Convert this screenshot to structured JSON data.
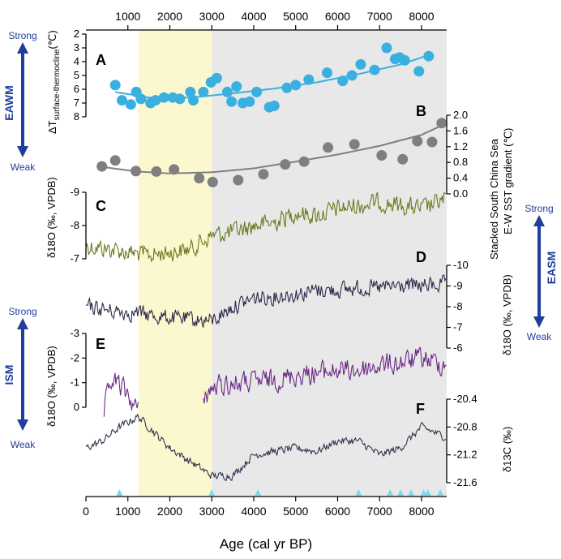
{
  "chart_data": {
    "type": "line",
    "x_axis": {
      "label": "Age (cal yr BP)",
      "range": [
        0,
        8600
      ],
      "bottom_ticks": [
        "0",
        "1000",
        "2000",
        "3000",
        "4000",
        "5000",
        "6000",
        "7000",
        "8000"
      ],
      "top_ticks": [
        "1000",
        "2000",
        "3000",
        "4000",
        "5000",
        "6000",
        "7000",
        "8000"
      ],
      "tick_values": [
        0,
        1000,
        2000,
        3000,
        4000,
        5000,
        6000,
        7000,
        8000
      ]
    },
    "shading": [
      {
        "name": "yellow-band",
        "from": 1250,
        "to": 3000,
        "color": "#fbf8d0"
      },
      {
        "name": "gray-band",
        "from": 3000,
        "to": 8600,
        "color": "#e8e8e8"
      }
    ],
    "monsoon_labels": {
      "eawm": {
        "title": "EAWM",
        "strong": "Strong",
        "weak": "Weak"
      },
      "easm": {
        "title": "EASM",
        "strong": "Strong",
        "weak": "Weak"
      },
      "ism": {
        "title": "ISM",
        "strong": "Strong",
        "weak": "Weak"
      },
      "color": "#1f3f9a"
    },
    "panels": [
      {
        "id": "A",
        "letter": "A",
        "type": "scatter+trend",
        "label_main": "ΔT",
        "label_sub": "surface-thermocline",
        "label_unit": "(℃)",
        "axis": "left",
        "reversed": true,
        "range": [
          2,
          8
        ],
        "ticks": [
          "2",
          "3",
          "4",
          "5",
          "6",
          "7",
          "8"
        ],
        "tick_values": [
          2,
          3,
          4,
          5,
          6,
          7,
          8
        ],
        "color": "#3ab0e0",
        "points": [
          [
            700,
            5.7
          ],
          [
            860,
            6.8
          ],
          [
            1070,
            7.1
          ],
          [
            1200,
            6.2
          ],
          [
            1310,
            6.7
          ],
          [
            1540,
            7.0
          ],
          [
            1660,
            6.8
          ],
          [
            1860,
            6.6
          ],
          [
            2070,
            6.6
          ],
          [
            2240,
            6.7
          ],
          [
            2490,
            6.2
          ],
          [
            2560,
            6.8
          ],
          [
            2800,
            6.2
          ],
          [
            2980,
            5.5
          ],
          [
            3120,
            5.2
          ],
          [
            3370,
            6.2
          ],
          [
            3470,
            6.9
          ],
          [
            3590,
            5.8
          ],
          [
            3740,
            7.0
          ],
          [
            3900,
            6.9
          ],
          [
            4070,
            6.2
          ],
          [
            4370,
            7.3
          ],
          [
            4490,
            7.2
          ],
          [
            4790,
            5.9
          ],
          [
            5000,
            5.7
          ],
          [
            5310,
            5.3
          ],
          [
            5750,
            4.8
          ],
          [
            6120,
            5.4
          ],
          [
            6340,
            5.0
          ],
          [
            6550,
            4.2
          ],
          [
            6880,
            4.6
          ],
          [
            7170,
            3.0
          ],
          [
            7370,
            3.8
          ],
          [
            7480,
            3.7
          ],
          [
            7600,
            3.9
          ],
          [
            7940,
            4.7
          ],
          [
            8170,
            3.6
          ]
        ],
        "trend": [
          [
            700,
            6.2
          ],
          [
            1500,
            6.6
          ],
          [
            2500,
            6.6
          ],
          [
            3500,
            6.3
          ],
          [
            4500,
            5.95
          ],
          [
            5500,
            5.5
          ],
          [
            6500,
            4.9
          ],
          [
            7500,
            4.2
          ],
          [
            8200,
            3.5
          ]
        ]
      },
      {
        "id": "B",
        "letter": "B",
        "type": "scatter+trend",
        "label_line1": "Stacked South China Sea",
        "label_line2": "E-W SST gradient (℃)",
        "axis": "right",
        "reversed": false,
        "range": [
          0,
          2
        ],
        "ticks": [
          "0.0",
          "0.4",
          "0.8",
          "1.2",
          "1.6",
          "2.0"
        ],
        "tick_values": [
          0,
          0.4,
          0.8,
          1.2,
          1.6,
          2.0
        ],
        "color": "#7f7f7f",
        "points": [
          [
            380,
            0.7
          ],
          [
            700,
            0.85
          ],
          [
            1190,
            0.58
          ],
          [
            1680,
            0.57
          ],
          [
            2100,
            0.62
          ],
          [
            2700,
            0.4
          ],
          [
            3020,
            0.3
          ],
          [
            3630,
            0.35
          ],
          [
            4230,
            0.5
          ],
          [
            4750,
            0.75
          ],
          [
            5200,
            0.82
          ],
          [
            5770,
            1.18
          ],
          [
            6400,
            1.26
          ],
          [
            7050,
            0.98
          ],
          [
            7550,
            0.88
          ],
          [
            7900,
            1.34
          ],
          [
            8250,
            1.32
          ],
          [
            8480,
            1.8
          ]
        ],
        "trend": [
          [
            300,
            0.7
          ],
          [
            1200,
            0.57
          ],
          [
            2000,
            0.52
          ],
          [
            3000,
            0.55
          ],
          [
            4000,
            0.65
          ],
          [
            5000,
            0.82
          ],
          [
            6000,
            1.0
          ],
          [
            7000,
            1.22
          ],
          [
            8000,
            1.5
          ],
          [
            8500,
            1.75
          ]
        ]
      },
      {
        "id": "C",
        "letter": "C",
        "type": "line",
        "label": "δ18O (‰, VPDB)",
        "axis": "left",
        "reversed": true,
        "range": [
          -9,
          -6.8
        ],
        "ticks": [
          "-9",
          "-8",
          "-7"
        ],
        "tick_values": [
          -9,
          -8,
          -7
        ],
        "color": "#6b7a1f",
        "noise": 0.25,
        "anchors": [
          [
            0,
            -7.4
          ],
          [
            500,
            -7.3
          ],
          [
            1000,
            -7.2
          ],
          [
            1500,
            -7.1
          ],
          [
            2000,
            -7.2
          ],
          [
            2500,
            -7.3
          ],
          [
            3000,
            -7.7
          ],
          [
            3500,
            -7.8
          ],
          [
            4000,
            -8.0
          ],
          [
            4500,
            -8.1
          ],
          [
            5000,
            -8.4
          ],
          [
            5500,
            -8.3
          ],
          [
            6000,
            -8.5
          ],
          [
            6500,
            -8.6
          ],
          [
            7000,
            -8.7
          ],
          [
            7500,
            -8.6
          ],
          [
            8000,
            -8.5
          ],
          [
            8600,
            -8.8
          ]
        ]
      },
      {
        "id": "D",
        "letter": "D",
        "type": "line",
        "label": "δ18O (‰, VPDB)",
        "axis": "right",
        "reversed": true,
        "range": [
          -10,
          -6
        ],
        "ticks": [
          "-10",
          "-9",
          "-8",
          "-7",
          "-6"
        ],
        "tick_values": [
          -10,
          -9,
          -8,
          -7,
          -6
        ],
        "color": "#2f2a4a",
        "noise": 0.35,
        "anchors": [
          [
            0,
            -8.0
          ],
          [
            600,
            -7.8
          ],
          [
            1200,
            -7.7
          ],
          [
            1800,
            -7.5
          ],
          [
            2400,
            -7.4
          ],
          [
            3000,
            -7.3
          ],
          [
            3500,
            -8.0
          ],
          [
            4000,
            -8.4
          ],
          [
            4500,
            -8.5
          ],
          [
            5000,
            -8.6
          ],
          [
            5500,
            -8.8
          ],
          [
            6000,
            -8.8
          ],
          [
            6500,
            -8.9
          ],
          [
            7000,
            -8.9
          ],
          [
            7500,
            -9.0
          ],
          [
            8000,
            -9.0
          ],
          [
            8600,
            -9.1
          ]
        ]
      },
      {
        "id": "E",
        "letter": "E",
        "type": "line",
        "label": "δ18O (‰, VPDB)",
        "axis": "left",
        "reversed": true,
        "range": [
          -3,
          0.4
        ],
        "ticks": [
          "-3",
          "-2",
          "-1",
          "0"
        ],
        "tick_values": [
          -3,
          -2,
          -1,
          0
        ],
        "color": "#6a2a86",
        "noise": 0.4,
        "segments": [
          [
            [
              430,
              0.2
            ],
            [
              600,
              -1.1
            ],
            [
              800,
              -0.9
            ],
            [
              1000,
              -0.5
            ],
            [
              1250,
              0.2
            ]
          ],
          [
            [
              2800,
              -0.5
            ],
            [
              3200,
              -0.9
            ],
            [
              3800,
              -1.0
            ],
            [
              4500,
              -1.1
            ],
            [
              5000,
              -1.3
            ],
            [
              5500,
              -1.4
            ],
            [
              6000,
              -1.5
            ],
            [
              6500,
              -1.5
            ],
            [
              7000,
              -1.7
            ],
            [
              7500,
              -1.8
            ],
            [
              8000,
              -2.0
            ],
            [
              8600,
              -1.7
            ]
          ]
        ]
      },
      {
        "id": "F",
        "letter": "F",
        "type": "line",
        "label": "δ13C (‰)",
        "axis": "right",
        "reversed": true,
        "range": [
          -20.4,
          -21.6
        ],
        "ticks": [
          "-20.4",
          "-20.8",
          "-21.2",
          "-21.6"
        ],
        "tick_values": [
          -20.4,
          -20.8,
          -21.2,
          -21.6
        ],
        "color": "#33344e",
        "noise": 0.05,
        "anchors": [
          [
            0,
            -21.1
          ],
          [
            400,
            -21.0
          ],
          [
            800,
            -20.8
          ],
          [
            1250,
            -20.65
          ],
          [
            1500,
            -20.8
          ],
          [
            2000,
            -21.1
          ],
          [
            2500,
            -21.3
          ],
          [
            3000,
            -21.5
          ],
          [
            3500,
            -21.5
          ],
          [
            4000,
            -21.2
          ],
          [
            4500,
            -21.15
          ],
          [
            5000,
            -21.1
          ],
          [
            5500,
            -21.15
          ],
          [
            6000,
            -21.0
          ],
          [
            6500,
            -21.0
          ],
          [
            7000,
            -21.2
          ],
          [
            7500,
            -21.1
          ],
          [
            8000,
            -20.8
          ],
          [
            8600,
            -20.95
          ]
        ]
      }
    ],
    "age_control_points": [
      800,
      3000,
      4100,
      6500,
      7250,
      7500,
      7750,
      8050,
      8150,
      8450
    ]
  }
}
